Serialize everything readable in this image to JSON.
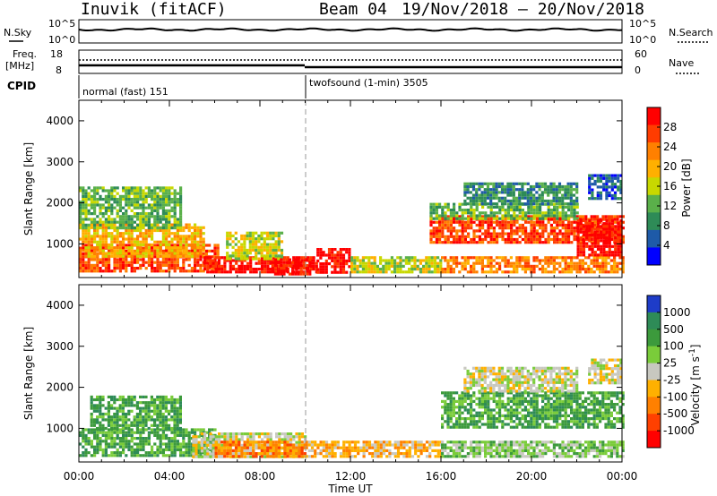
{
  "header": {
    "radar": "Inuvik (fitACF)",
    "beam": "Beam 04",
    "dates": "19/Nov/2018 – 20/Nov/2018"
  },
  "top_panels": {
    "nsky_label": "N.Sky",
    "nsearch_label": "N.Search",
    "nsky_ticks": [
      "10^5",
      "10^0"
    ],
    "freq_label_line1": "Freq.",
    "freq_label_line2": "[MHz]",
    "freq_ticks": [
      "18",
      "8"
    ],
    "nave_label": "Nave",
    "nave_ticks": [
      "60",
      "0"
    ],
    "cpid_label": "CPID",
    "cpid_segments": [
      {
        "text": "normal (fast) 151",
        "start_hour": 0
      },
      {
        "text": "twofsound (1-min) 3505",
        "start_hour": 10
      }
    ]
  },
  "x_axis": {
    "label": "Time UT",
    "ticks": [
      "00:00",
      "04:00",
      "08:00",
      "12:00",
      "16:00",
      "20:00",
      "00:00"
    ],
    "tick_hours": [
      0,
      4,
      8,
      12,
      16,
      20,
      24
    ]
  },
  "chart_data": [
    {
      "type": "heatmap",
      "name": "power",
      "ylabel": "Slant Range [km]",
      "xlim": [
        0,
        24
      ],
      "ylim": [
        180,
        4500
      ],
      "yticks": [
        1000,
        2000,
        3000,
        4000
      ],
      "colorbar_label": "Power [dB]",
      "colorbar_ticks": [
        "28",
        "24",
        "20",
        "16",
        "12",
        "8",
        "4"
      ],
      "colorbar_colors": [
        "#ff0000",
        "#ff3c00",
        "#ff8000",
        "#ffb000",
        "#c8d800",
        "#5ab04a",
        "#2e8b57",
        "#1e5aa8",
        "#0000ff"
      ],
      "regions": [
        {
          "t": [
            0.0,
            6.2
          ],
          "r": [
            350,
            1000
          ],
          "level": 7
        },
        {
          "t": [
            0.0,
            5.5
          ],
          "r": [
            700,
            1500
          ],
          "level": 5
        },
        {
          "t": [
            0.0,
            4.5
          ],
          "r": [
            1400,
            2400
          ],
          "level": 3
        },
        {
          "t": [
            5.5,
            10.5
          ],
          "r": [
            300,
            700
          ],
          "level": 8
        },
        {
          "t": [
            6.5,
            9.0
          ],
          "r": [
            650,
            1300
          ],
          "level": 4
        },
        {
          "t": [
            8.5,
            10.2
          ],
          "r": [
            300,
            650
          ],
          "level": 8
        },
        {
          "t": [
            10.5,
            12.0
          ],
          "r": [
            300,
            900
          ],
          "level": 8
        },
        {
          "t": [
            12.0,
            16.0
          ],
          "r": [
            300,
            700
          ],
          "level": 4
        },
        {
          "t": [
            15.5,
            24.0
          ],
          "r": [
            1050,
            1700
          ],
          "level": 7
        },
        {
          "t": [
            15.5,
            22.0
          ],
          "r": [
            1600,
            2000
          ],
          "level": 3
        },
        {
          "t": [
            17.0,
            22.0
          ],
          "r": [
            1950,
            2500
          ],
          "level": 2
        },
        {
          "t": [
            16.0,
            24.0
          ],
          "r": [
            300,
            700
          ],
          "level": 6
        },
        {
          "t": [
            22.0,
            24.0
          ],
          "r": [
            700,
            1600
          ],
          "level": 8
        },
        {
          "t": [
            22.5,
            24.0
          ],
          "r": [
            2100,
            2700
          ],
          "level": 1
        }
      ]
    },
    {
      "type": "heatmap",
      "name": "velocity",
      "ylabel": "Slant Range [km]",
      "xlim": [
        0,
        24
      ],
      "ylim": [
        180,
        4500
      ],
      "yticks": [
        1000,
        2000,
        3000,
        4000
      ],
      "colorbar_label": "Velocity [m s^-1]",
      "colorbar_ticks": [
        "1000",
        "500",
        "100",
        "25",
        "-25",
        "-100",
        "-500",
        "-1000"
      ],
      "colorbar_colors": [
        "#1e3cc8",
        "#2e8b57",
        "#3c9a3c",
        "#7acc3a",
        "#c8c8c0",
        "#ffb000",
        "#ff8000",
        "#ff4000",
        "#ff0000"
      ],
      "regions": [
        {
          "t": [
            0.0,
            6.0
          ],
          "r": [
            350,
            1000
          ],
          "level": 6
        },
        {
          "t": [
            0.5,
            4.5
          ],
          "r": [
            1000,
            1800
          ],
          "level": 6
        },
        {
          "t": [
            5.0,
            10.0
          ],
          "r": [
            300,
            900
          ],
          "level": 4
        },
        {
          "t": [
            6.0,
            10.0
          ],
          "r": [
            300,
            700
          ],
          "level": 2
        },
        {
          "t": [
            10.0,
            16.0
          ],
          "r": [
            300,
            700
          ],
          "level": 3
        },
        {
          "t": [
            16.0,
            24.0
          ],
          "r": [
            1000,
            1900
          ],
          "level": 6
        },
        {
          "t": [
            17.0,
            22.0
          ],
          "r": [
            1900,
            2500
          ],
          "level": 4
        },
        {
          "t": [
            16.0,
            24.0
          ],
          "r": [
            300,
            700
          ],
          "level": 5
        },
        {
          "t": [
            22.5,
            24.0
          ],
          "r": [
            2100,
            2700
          ],
          "level": 4
        }
      ]
    }
  ]
}
